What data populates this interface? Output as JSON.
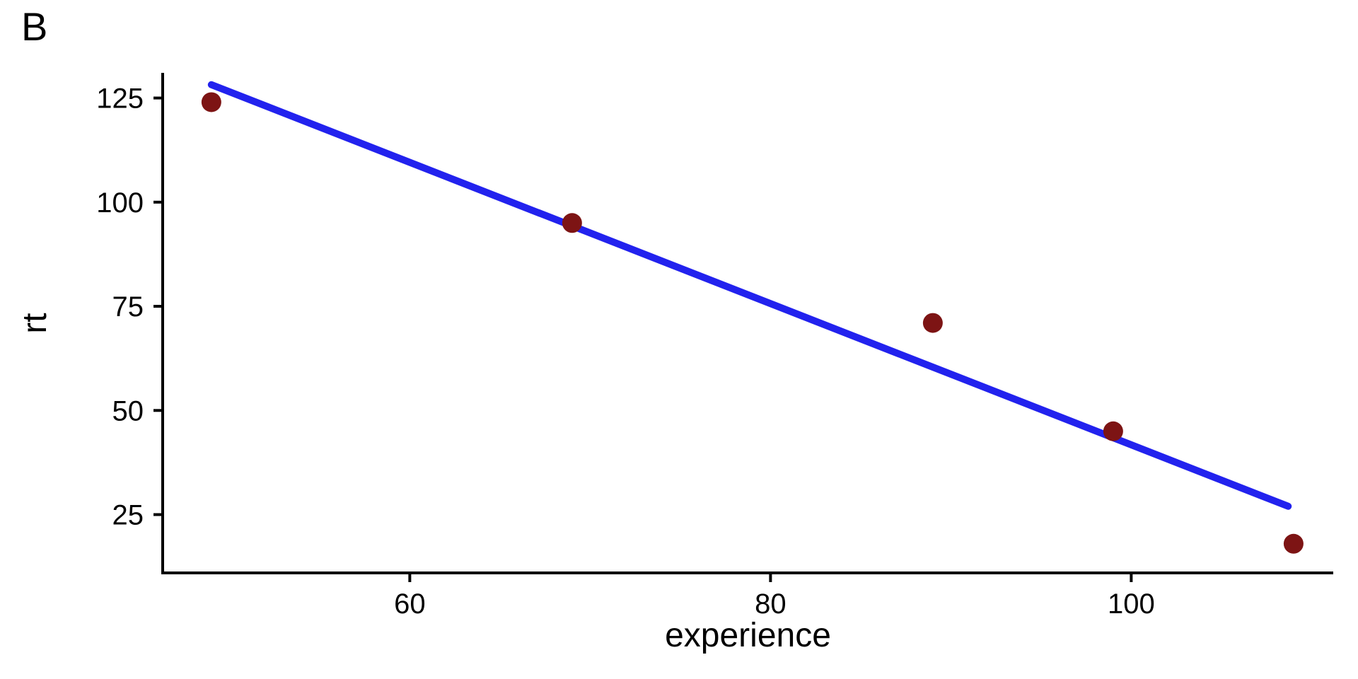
{
  "figure": {
    "panel_label": "B"
  },
  "chart_data": {
    "type": "scatter",
    "title": "",
    "xlabel": "experience",
    "ylabel": "rt",
    "x_ticks": [
      60,
      80,
      100
    ],
    "y_ticks": [
      25,
      50,
      75,
      100,
      125
    ],
    "xlim": [
      46.3,
      111.2
    ],
    "ylim": [
      11,
      130.7
    ],
    "grid": false,
    "legend": false,
    "points": [
      {
        "x": 49,
        "y": 124
      },
      {
        "x": 69,
        "y": 95
      },
      {
        "x": 89,
        "y": 71
      },
      {
        "x": 99,
        "y": 45
      },
      {
        "x": 109,
        "y": 18
      }
    ],
    "regression_line": {
      "x1": 49,
      "y1": 128.2,
      "x2": 108.7,
      "y2": 27.0,
      "slope": -1.695,
      "intercept": 211.3
    },
    "colors": {
      "point": "#7D1414",
      "line": "#2222EE",
      "axis": "#000000",
      "text": "#000000",
      "background": "#FFFFFF"
    }
  }
}
